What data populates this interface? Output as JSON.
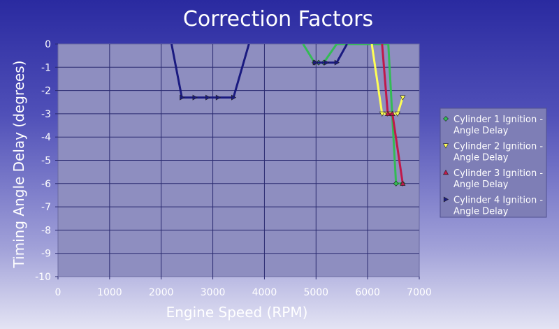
{
  "chart_data": {
    "type": "line",
    "title": "Correction Factors",
    "xlabel": "Engine Speed (RPM)",
    "ylabel": "Timing Angle Delay (degrees)",
    "xlim": [
      0,
      7000
    ],
    "ylim": [
      -10,
      0
    ],
    "xticks": [
      0,
      1000,
      2000,
      3000,
      4000,
      5000,
      6000,
      7000
    ],
    "yticks": [
      0,
      -1,
      -2,
      -3,
      -4,
      -5,
      -6,
      -7,
      -8,
      -9,
      -10
    ],
    "grid": true,
    "legend_position": "right",
    "series": [
      {
        "name": "Cylinder 1 Ignition - Angle Delay",
        "color": "#33bb55",
        "marker": "diamond",
        "x": [
          4750,
          4970,
          5050,
          5150,
          5400,
          6400,
          6550,
          6680,
          6550,
          6400,
          5400,
          5150,
          5050,
          4970,
          4750
        ],
        "y": [
          0,
          -0.8,
          -0.8,
          -0.8,
          0,
          0,
          -6,
          -6,
          -6,
          0,
          0,
          -0.8,
          -0.8,
          -0.8,
          0
        ]
      },
      {
        "name": "Cylinder 2 Ignition - Angle Delay",
        "color": "#ffff55",
        "marker": "triangle-down",
        "x": [
          6080,
          6280,
          6380,
          6450,
          6580,
          6680
        ],
        "y": [
          0,
          -3,
          -3,
          -3,
          -3,
          -2.3
        ]
      },
      {
        "name": "Cylinder 3 Ignition - Angle Delay",
        "color": "#c0184a",
        "marker": "triangle-up",
        "x": [
          6280,
          6390,
          6480,
          6680
        ],
        "y": [
          0,
          -3,
          -3,
          -6
        ]
      },
      {
        "name": "Cylinder 4 Ignition - Angle Delay",
        "color": "#1a1a80",
        "marker": "triangle-right",
        "x": [
          2200,
          2400,
          2650,
          2900,
          3100,
          3400,
          3700,
          4650,
          4980,
          5200,
          5400,
          5600
        ],
        "y": [
          0,
          -2.3,
          -2.3,
          -2.3,
          -2.3,
          -2.3,
          0,
          null,
          -0.8,
          -0.8,
          -0.8,
          0
        ]
      }
    ]
  }
}
